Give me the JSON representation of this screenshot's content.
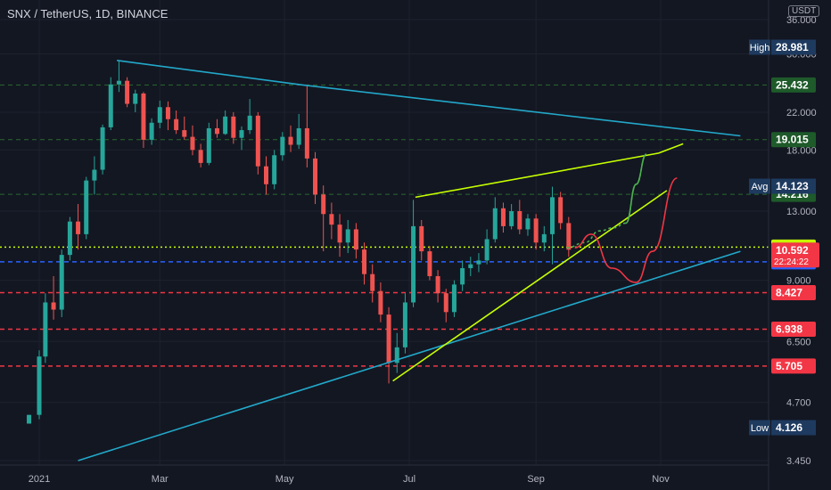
{
  "header": {
    "symbol": "SNX / TetherUS, 1D, BINANCE",
    "currency": "USDT"
  },
  "chart_data": {
    "type": "candlestick",
    "x_ticks": [
      "2021",
      "Mar",
      "May",
      "Jul",
      "Sep",
      "Nov"
    ],
    "y_ticks": [
      3.45,
      4.7,
      6.5,
      9.0,
      13.0,
      18.0,
      22.0,
      30.0,
      36.0
    ],
    "y_tick_labels": [
      "3.450",
      "4.700",
      "6.500",
      "9.000",
      "13.000",
      "18.000",
      "22.000",
      "30.000",
      "36.000"
    ],
    "price_lines": [
      {
        "value": 25.432,
        "label": "25.432",
        "color": "#1f5f2f",
        "style": "dashed"
      },
      {
        "value": 19.015,
        "label": "19.015",
        "color": "#1f5f2f",
        "style": "dashed"
      },
      {
        "value": 14.216,
        "label": "14.216",
        "color": "#1f5f2f",
        "style": "dashed"
      },
      {
        "value": 10.734,
        "label": "10.734",
        "color": "#c6ff00",
        "style": "dotted"
      },
      {
        "value": 9.927,
        "label": "9.927",
        "color": "#2962ff",
        "style": "dashed"
      },
      {
        "value": 8.427,
        "label": "8.427",
        "color": "#f23645",
        "style": "dashed"
      },
      {
        "value": 6.938,
        "label": "6.938",
        "color": "#f23645",
        "style": "dashed"
      },
      {
        "value": 5.705,
        "label": "5.705",
        "color": "#f23645",
        "style": "dashed"
      }
    ],
    "stats": {
      "high": {
        "name": "High",
        "value": "28.981"
      },
      "avg": {
        "name": "Avg",
        "value": "14.123"
      },
      "low": {
        "name": "Low",
        "value": "4.126"
      },
      "last": {
        "value": "10.592",
        "countdown": "22:24:22"
      }
    },
    "trendlines": [
      {
        "color": "#22a8c9",
        "points": [
          [
            "2021-02-08",
            28.98
          ],
          [
            "2021-05-10",
            25.43
          ],
          [
            "2021-12-10",
            19.4
          ]
        ]
      },
      {
        "color": "#22a8c9",
        "points": [
          [
            "2021-01-20",
            3.45
          ],
          [
            "2021-12-10",
            10.5
          ]
        ]
      },
      {
        "color": "#c6ff00",
        "points": [
          [
            "2021-07-04",
            14.0
          ],
          [
            "2021-10-31",
            17.7
          ],
          [
            "2021-11-12",
            18.6
          ]
        ]
      },
      {
        "color": "#c6ff00",
        "points": [
          [
            "2021-06-23",
            5.27
          ],
          [
            "2021-11-04",
            14.5
          ]
        ]
      }
    ],
    "projections": [
      {
        "color": "#4caf50",
        "style": "dashed",
        "points": [
          [
            "2021-09-16",
            10.7
          ],
          [
            "2021-09-25",
            11.0
          ],
          [
            "2021-10-02",
            11.7
          ],
          [
            "2021-10-09",
            11.9
          ],
          [
            "2021-10-15",
            12.2
          ],
          [
            "2021-10-20",
            15.0
          ],
          [
            "2021-10-25",
            17.6
          ]
        ]
      },
      {
        "color": "#4caf50",
        "style": "solid",
        "points": [
          [
            "2021-10-15",
            12.2
          ],
          [
            "2021-10-20",
            15.0
          ],
          [
            "2021-10-25",
            17.6
          ]
        ]
      },
      {
        "color": "#f23645",
        "style": "solid",
        "points": [
          [
            "2021-09-20",
            10.7
          ],
          [
            "2021-09-28",
            11.5
          ],
          [
            "2021-10-08",
            9.6
          ],
          [
            "2021-10-20",
            8.9
          ],
          [
            "2021-10-28",
            10.5
          ],
          [
            "2021-11-09",
            15.5
          ]
        ]
      }
    ],
    "candles": [
      [
        "2020-12-27",
        4.2,
        4.4,
        4.3,
        4.4
      ],
      [
        "2021-01-01",
        4.4,
        6.2,
        4.3,
        6.0
      ],
      [
        "2021-01-04",
        6.0,
        8.4,
        5.8,
        8.0
      ],
      [
        "2021-01-08",
        8.0,
        9.2,
        7.3,
        7.7
      ],
      [
        "2021-01-12",
        7.7,
        10.6,
        7.4,
        10.3
      ],
      [
        "2021-01-16",
        10.3,
        12.6,
        10.0,
        12.3
      ],
      [
        "2021-01-20",
        12.3,
        13.5,
        10.6,
        11.5
      ],
      [
        "2021-01-24",
        11.5,
        15.6,
        11.2,
        15.3
      ],
      [
        "2021-01-28",
        15.3,
        17.4,
        14.2,
        16.2
      ],
      [
        "2021-02-01",
        16.2,
        20.6,
        15.8,
        20.3
      ],
      [
        "2021-02-05",
        20.3,
        26.5,
        20.0,
        25.5
      ],
      [
        "2021-02-09",
        25.5,
        28.9,
        24.5,
        26.0
      ],
      [
        "2021-02-13",
        26.0,
        26.5,
        22.6,
        23.0
      ],
      [
        "2021-02-17",
        23.0,
        24.8,
        22.0,
        24.3
      ],
      [
        "2021-02-21",
        24.3,
        24.5,
        18.2,
        19.0
      ],
      [
        "2021-02-25",
        19.0,
        21.3,
        18.5,
        20.8
      ],
      [
        "2021-03-01",
        20.8,
        23.4,
        20.2,
        22.6
      ],
      [
        "2021-03-05",
        22.6,
        23.3,
        20.0,
        21.2
      ],
      [
        "2021-03-09",
        21.2,
        22.2,
        19.6,
        20.0
      ],
      [
        "2021-03-13",
        20.0,
        21.5,
        19.0,
        19.3
      ],
      [
        "2021-03-17",
        19.3,
        20.5,
        17.5,
        18.0
      ],
      [
        "2021-03-21",
        18.0,
        18.6,
        16.4,
        16.8
      ],
      [
        "2021-03-25",
        16.8,
        20.8,
        16.6,
        20.2
      ],
      [
        "2021-03-29",
        20.2,
        21.2,
        19.2,
        19.6
      ],
      [
        "2021-04-02",
        19.6,
        22.2,
        19.5,
        21.5
      ],
      [
        "2021-04-06",
        21.5,
        22.0,
        18.6,
        19.2
      ],
      [
        "2021-04-10",
        19.2,
        20.4,
        18.0,
        20.0
      ],
      [
        "2021-04-14",
        20.0,
        23.6,
        19.6,
        21.6
      ],
      [
        "2021-04-18",
        21.6,
        22.0,
        15.8,
        16.5
      ],
      [
        "2021-04-22",
        16.5,
        17.4,
        14.2,
        15.0
      ],
      [
        "2021-04-26",
        15.0,
        18.0,
        14.6,
        17.5
      ],
      [
        "2021-04-30",
        17.5,
        19.8,
        17.0,
        19.3
      ],
      [
        "2021-05-04",
        19.3,
        20.5,
        17.8,
        18.5
      ],
      [
        "2021-05-08",
        18.5,
        21.8,
        18.1,
        20.2
      ],
      [
        "2021-05-12",
        20.2,
        25.4,
        16.4,
        17.2
      ],
      [
        "2021-05-16",
        17.2,
        17.8,
        13.5,
        14.2
      ],
      [
        "2021-05-20",
        14.2,
        14.9,
        10.5,
        12.8
      ],
      [
        "2021-05-24",
        12.8,
        13.6,
        11.2,
        12.1
      ],
      [
        "2021-05-28",
        12.1,
        12.8,
        10.2,
        11.0
      ],
      [
        "2021-06-01",
        11.0,
        12.4,
        10.4,
        11.8
      ],
      [
        "2021-06-05",
        11.8,
        12.2,
        10.1,
        10.6
      ],
      [
        "2021-06-09",
        10.6,
        11.0,
        8.8,
        9.3
      ],
      [
        "2021-06-13",
        9.3,
        9.8,
        8.0,
        8.5
      ],
      [
        "2021-06-17",
        8.5,
        8.9,
        7.2,
        7.5
      ],
      [
        "2021-06-21",
        7.5,
        7.8,
        5.2,
        5.8
      ],
      [
        "2021-06-25",
        5.8,
        6.8,
        5.5,
        6.3
      ],
      [
        "2021-06-29",
        6.3,
        8.4,
        6.1,
        8.0
      ],
      [
        "2021-07-03",
        8.0,
        13.8,
        7.8,
        12.0
      ],
      [
        "2021-07-07",
        12.0,
        12.4,
        10.0,
        10.5
      ],
      [
        "2021-07-11",
        10.5,
        10.8,
        9.0,
        9.2
      ],
      [
        "2021-07-15",
        9.2,
        9.5,
        8.0,
        8.4
      ],
      [
        "2021-07-19",
        8.4,
        8.6,
        7.2,
        7.6
      ],
      [
        "2021-07-23",
        7.6,
        9.0,
        7.4,
        8.8
      ],
      [
        "2021-07-27",
        8.8,
        10.0,
        8.5,
        9.6
      ],
      [
        "2021-07-31",
        9.6,
        10.2,
        9.2,
        9.8
      ],
      [
        "2021-08-04",
        9.8,
        10.4,
        9.4,
        10.0
      ],
      [
        "2021-08-08",
        10.0,
        11.8,
        9.8,
        11.2
      ],
      [
        "2021-08-12",
        11.2,
        14.0,
        11.0,
        13.2
      ],
      [
        "2021-08-16",
        13.2,
        13.6,
        11.6,
        12.0
      ],
      [
        "2021-08-20",
        12.0,
        13.5,
        11.8,
        13.0
      ],
      [
        "2021-08-24",
        13.0,
        13.8,
        11.5,
        11.8
      ],
      [
        "2021-08-28",
        11.8,
        12.8,
        11.4,
        12.5
      ],
      [
        "2021-09-01",
        12.5,
        12.8,
        10.6,
        11.0
      ],
      [
        "2021-09-05",
        11.0,
        12.0,
        10.5,
        11.5
      ],
      [
        "2021-09-09",
        11.5,
        14.8,
        9.8,
        14.0
      ],
      [
        "2021-09-13",
        14.0,
        14.4,
        11.8,
        12.2
      ],
      [
        "2021-09-17",
        12.2,
        12.6,
        10.2,
        10.59
      ]
    ]
  }
}
